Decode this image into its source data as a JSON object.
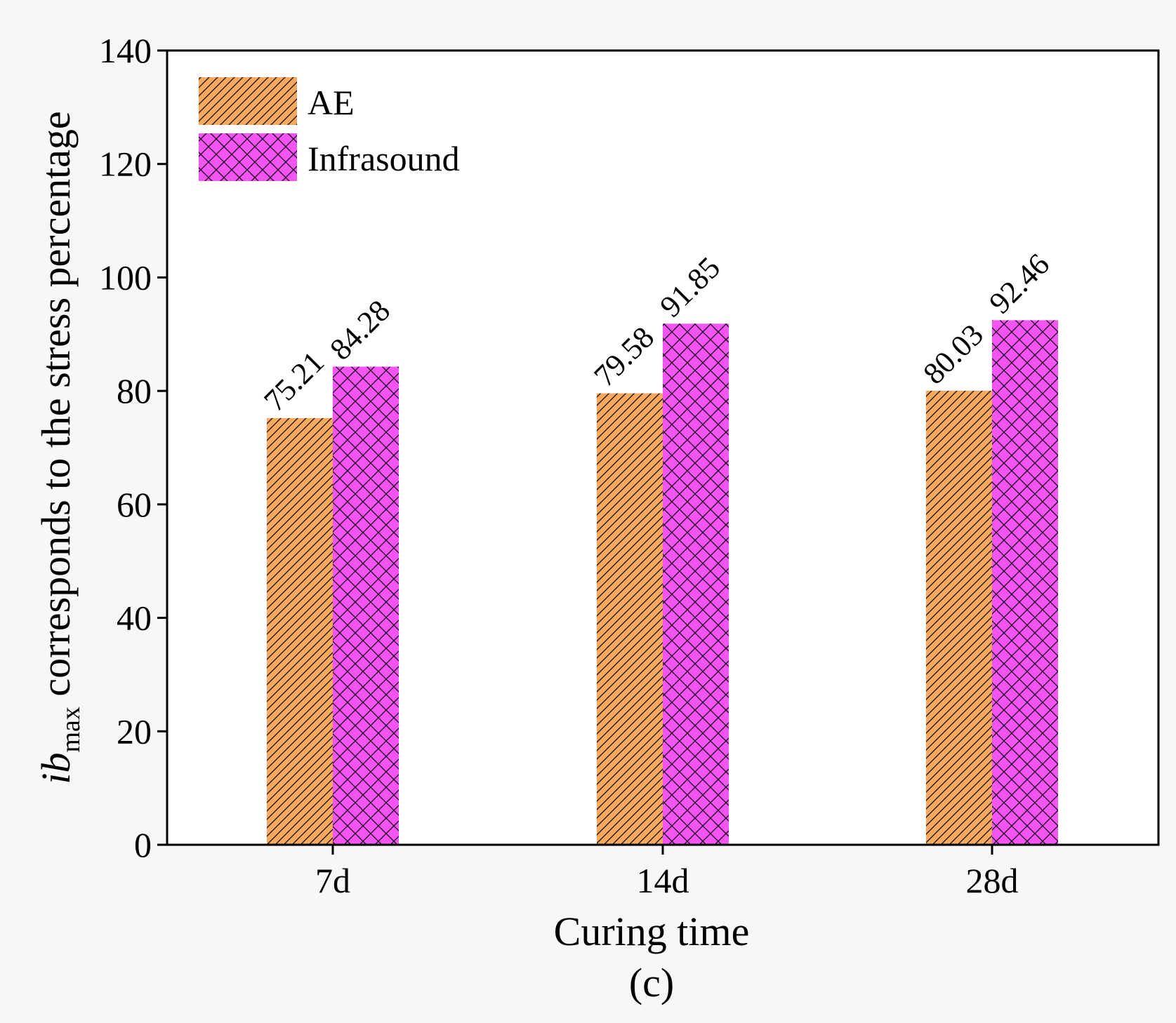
{
  "chart_data": {
    "type": "bar",
    "categories": [
      "7d",
      "14d",
      "28d"
    ],
    "series": [
      {
        "name": "AE",
        "values": [
          75.21,
          79.58,
          80.03
        ],
        "value_labels": [
          "75.21",
          "79.58",
          "80.03"
        ],
        "color": "#f4a860",
        "pattern": "diagonal-hatch"
      },
      {
        "name": "Infrasound",
        "values": [
          84.28,
          91.85,
          92.46
        ],
        "value_labels": [
          "84.28",
          "91.85",
          "92.46"
        ],
        "color": "#f255f2",
        "pattern": "cross-hatch"
      }
    ],
    "xlabel": "Curing time",
    "ylabel": {
      "italic": "ib",
      "subscript": "max",
      "rest": " corresponds to the stress percentage"
    },
    "ylim": [
      0,
      140
    ],
    "yticks": [
      0,
      20,
      40,
      60,
      80,
      100,
      120,
      140
    ],
    "legend_position": "top-left",
    "grid": false,
    "caption": "(c)"
  }
}
